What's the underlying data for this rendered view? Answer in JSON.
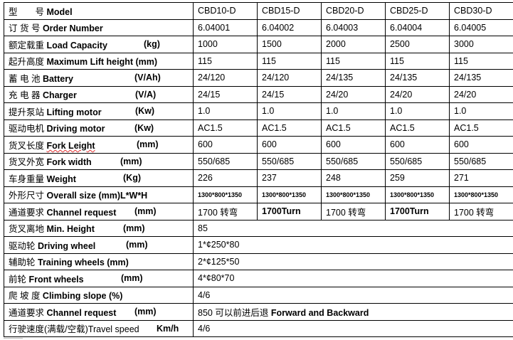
{
  "rows": [
    {
      "cn": "型　　号",
      "en": "Model",
      "unit": "",
      "unit_pos": 0,
      "vals": [
        "CBD10-D",
        "CBD15-D",
        "CBD20-D",
        "CBD25-D",
        "CBD30-D"
      ]
    },
    {
      "cn": "订 货 号",
      "en": "Order Number",
      "unit": "",
      "unit_pos": 0,
      "vals": [
        "6.04001",
        "6.04002",
        "6.04003",
        "6.04004",
        "6.04005"
      ]
    },
    {
      "cn": "额定载重 ",
      "en": "Load Capacity",
      "unit": "(kg)",
      "unit_pos": 196,
      "vals": [
        "1000",
        "1500",
        "2000",
        "2500",
        "3000"
      ]
    },
    {
      "cn": "起升高度",
      "en": "Maximum Lift height (mm)",
      "unit": "",
      "unit_pos": 0,
      "vals": [
        "115",
        "115",
        "115",
        "115",
        "115"
      ]
    },
    {
      "cn": "蓄 电 池",
      "en": "Battery",
      "unit": "(V/Ah)",
      "unit_pos": 183,
      "vals": [
        "24/120",
        "24/120",
        "24/135",
        "24/135",
        "24/135"
      ]
    },
    {
      "cn": "充 电 器",
      "en": "Charger",
      "unit": "(V/A)",
      "unit_pos": 184,
      "vals": [
        "24/15",
        "24/15",
        "24/20",
        "24/20",
        "24/20"
      ]
    },
    {
      "cn": "提升泵站",
      "en": "Lifting motor",
      "unit": "(Kw)",
      "unit_pos": 184,
      "vals": [
        "1.0",
        "1.0",
        "1.0",
        "1.0",
        "1.0"
      ]
    },
    {
      "cn": "驱动电机",
      "en": "Driving motor",
      "unit": "(Kw)",
      "unit_pos": 183,
      "vals": [
        "AC1.5",
        "AC1.5",
        "AC1.5",
        "AC1.5",
        "AC1.5"
      ]
    },
    {
      "cn": "货叉长度",
      "en": "Fork Leight",
      "unit": "(mm)",
      "unit_pos": 186,
      "vals": [
        "600",
        "600",
        "600",
        "600",
        "600"
      ]
    },
    {
      "cn": "货叉外宽",
      "en": "Fork width",
      "unit": "(mm)",
      "unit_pos": 163,
      "vals": [
        "550/685",
        "550/685",
        "550/685",
        "550/685",
        "550/685"
      ]
    },
    {
      "cn": "车身重量",
      "en": "Weight",
      "unit": "(Kg)",
      "unit_pos": 167,
      "vals": [
        "226",
        "237",
        "248",
        "259",
        "271"
      ]
    },
    {
      "cn": "外形尺寸",
      "en": "Overall size (mm)L*W*H",
      "unit": "",
      "unit_pos": 0,
      "vals": [
        "1300*800*1350",
        "1300*800*1350",
        "1300*800*1350",
        "1300*800*1350",
        "1300*800*1350"
      ]
    },
    {
      "cn": "通道要求 ",
      "en": "Channel request",
      "unit": "(mm)",
      "unit_pos": 183,
      "vals": [
        "1700 转弯",
        "1700Turn",
        "1700 转弯",
        "1700Turn",
        "1700 转弯"
      ]
    },
    {
      "cn": "货叉离地",
      "en": "Min. Height",
      "unit": "(mm)",
      "unit_pos": 167,
      "span": "85"
    },
    {
      "cn": "驱动轮 ",
      "en": "Driving wheel",
      "unit": "(mm)",
      "unit_pos": 171,
      "span": "1*¢250*80"
    },
    {
      "cn": "辅助轮",
      "en": "Training wheels (mm)",
      "unit": "",
      "unit_pos": 0,
      "span": "2*¢125*50"
    },
    {
      "cn": "前轮",
      "en": "Front wheels",
      "unit": "(mm)",
      "unit_pos": 164,
      "span": "4*¢80*70"
    },
    {
      "cn": "爬 坡 度 ",
      "en": "Climbing slope (%)",
      "unit": "",
      "unit_pos": 0,
      "span": "4/6"
    },
    {
      "cn": "通道要求 ",
      "en": "Channel request",
      "unit": "(mm)",
      "unit_pos": 183,
      "span": "850 可以前进后退 Forward and Backward"
    },
    {
      "cn": "行驶速度(满载/空载)Travel speed",
      "en": "",
      "unit": "Km/h",
      "unit_pos": 214,
      "span": "4/6"
    }
  ]
}
